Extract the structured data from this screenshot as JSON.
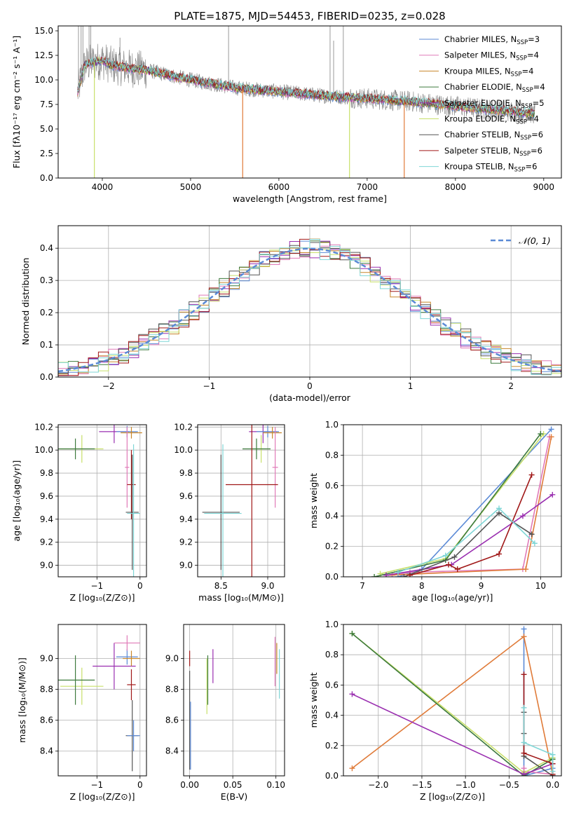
{
  "colors": {
    "chabrier_miles": "#5b8ad6",
    "salpeter_miles": "#e07ab8",
    "kroupa_miles": "#c8862a",
    "chabrier_elodie": "#3d7a3d",
    "salpeter_elodie": "#9a2fb0",
    "kroupa_elodie": "#c8e06a",
    "chabrier_stelib": "#555555",
    "salpeter_stelib": "#a01818",
    "kroupa_stelib": "#7fd6d6",
    "data": "#808080",
    "normal": "#5b8ad6",
    "orange": "#e07b39"
  },
  "chart_data": [
    {
      "id": "spectrum",
      "type": "line",
      "title": "PLATE=1875, MJD=54453, FIBERID=0235, z=0.028",
      "xlabel": "wavelength [Angstrom, rest frame]",
      "ylabel": "Flux [fλ10⁻¹⁷ erg cm⁻² s⁻¹ A⁻¹]",
      "xlim": [
        3500,
        9200
      ],
      "ylim": [
        0,
        15.5
      ],
      "xticks": [
        4000,
        5000,
        6000,
        7000,
        8000,
        9000
      ],
      "yticks": [
        0.0,
        2.5,
        5.0,
        7.5,
        10.0,
        12.5,
        15.0
      ],
      "legend_position": "top-right",
      "legend": [
        {
          "label": "Chabrier MILES, N",
          "sub": "SSP",
          "eq": "=3",
          "color_key": "chabrier_miles"
        },
        {
          "label": "Salpeter MILES, N",
          "sub": "SSP",
          "eq": "=4",
          "color_key": "salpeter_miles"
        },
        {
          "label": "Kroupa MILES, N",
          "sub": "SSP",
          "eq": "=4",
          "color_key": "kroupa_miles"
        },
        {
          "label": "Chabrier ELODIE, N",
          "sub": "SSP",
          "eq": "=4",
          "color_key": "chabrier_elodie"
        },
        {
          "label": "Salpeter ELODIE, N",
          "sub": "SSP",
          "eq": "=5",
          "color_key": "salpeter_elodie"
        },
        {
          "label": "Kroupa ELODIE, N",
          "sub": "SSP",
          "eq": "=4",
          "color_key": "kroupa_elodie"
        },
        {
          "label": "Chabrier STELIB, N",
          "sub": "SSP",
          "eq": "=6",
          "color_key": "chabrier_stelib"
        },
        {
          "label": "Salpeter STELIB, N",
          "sub": "SSP",
          "eq": "=6",
          "color_key": "salpeter_stelib"
        },
        {
          "label": "Kroupa STELIB, N",
          "sub": "SSP",
          "eq": "=6",
          "color_key": "kroupa_stelib"
        }
      ],
      "continuum": {
        "x": [
          3700,
          3800,
          3900,
          4000,
          4100,
          4300,
          4500,
          5000,
          5500,
          6000,
          6500,
          7000,
          7500,
          8000,
          8500,
          8900
        ],
        "y": [
          8.0,
          11.5,
          11.8,
          12.0,
          11.5,
          11.2,
          11.0,
          10.0,
          9.2,
          8.8,
          8.4,
          8.1,
          7.8,
          7.3,
          6.9,
          6.6
        ]
      },
      "data_spikes": [
        {
          "x": 3730,
          "y": 15.5
        },
        {
          "x": 3760,
          "y": 15.5
        },
        {
          "x": 3780,
          "y": 15.5
        },
        {
          "x": 3850,
          "y": 15.5
        },
        {
          "x": 3870,
          "y": 15.5
        },
        {
          "x": 4200,
          "y": 14.3
        },
        {
          "x": 5430,
          "y": 15.5
        },
        {
          "x": 6580,
          "y": 15.5
        },
        {
          "x": 6620,
          "y": 14.0
        },
        {
          "x": 6730,
          "y": 15.5
        }
      ],
      "model_dips": [
        {
          "x": 3910,
          "y": 0.0
        },
        {
          "x": 5590,
          "y": 0.0
        },
        {
          "x": 6800,
          "y": 0.0
        },
        {
          "x": 7420,
          "y": 0.0
        }
      ]
    },
    {
      "id": "residuals",
      "type": "bar",
      "xlabel": "(data-model)/error",
      "ylabel": "Normed distribution",
      "xlim": [
        -2.5,
        2.5
      ],
      "ylim": [
        0,
        0.47
      ],
      "xticks": [
        -2,
        -1,
        0,
        1,
        2
      ],
      "yticks": [
        0.0,
        0.1,
        0.2,
        0.3,
        0.4
      ],
      "legend_position": "top-right",
      "normal_label": "𝒩(0, 1)",
      "bin_width": 0.1,
      "bin_start": -2.5
    },
    {
      "id": "age_vs_Z",
      "type": "scatter",
      "xlabel": "Z [log₁₀(Z/Z⊙)]",
      "ylabel": "age  [log₁₀(age/yr)]",
      "xlim": [
        -1.9,
        0.15
      ],
      "ylim": [
        8.9,
        10.22
      ],
      "xticks": [
        -1,
        0
      ],
      "yticks": [
        9.0,
        9.2,
        9.4,
        9.6,
        9.8,
        10.0,
        10.2
      ],
      "points": [
        {
          "x": -1.35,
          "y": 10.01,
          "dx": 0.5,
          "dy": 0.12,
          "c": "kroupa_elodie"
        },
        {
          "x": -1.5,
          "y": 10.01,
          "dx": 0.45,
          "dy": 0.09,
          "c": "chabrier_elodie"
        },
        {
          "x": -0.6,
          "y": 10.16,
          "dx": 0.35,
          "dy": 0.1,
          "c": "salpeter_elodie"
        },
        {
          "x": -0.3,
          "y": 10.16,
          "dx": 0.25,
          "dy": 0.05,
          "c": "chabrier_miles"
        },
        {
          "x": -0.2,
          "y": 10.15,
          "dx": 0.25,
          "dy": 0.05,
          "c": "kroupa_miles"
        },
        {
          "x": -0.3,
          "y": 9.85,
          "dx": 0.05,
          "dy": 0.35,
          "c": "salpeter_miles"
        },
        {
          "x": -0.2,
          "y": 9.7,
          "dx": 0.1,
          "dy": 0.3,
          "c": "salpeter_stelib"
        },
        {
          "x": -0.18,
          "y": 9.46,
          "dx": 0.15,
          "dy": 0.5,
          "c": "chabrier_stelib"
        },
        {
          "x": -0.15,
          "y": 9.45,
          "dx": 0.15,
          "dy": 0.6,
          "c": "kroupa_stelib"
        }
      ]
    },
    {
      "id": "age_vs_mass",
      "type": "scatter",
      "xlabel": "mass [log₁₀(M/M⊙)]",
      "ylabel": "",
      "xlim": [
        8.25,
        9.18
      ],
      "ylim": [
        8.9,
        10.22
      ],
      "xticks": [
        8.5,
        9.0
      ],
      "yticks": [
        9.0,
        9.2,
        9.4,
        9.6,
        9.8,
        10.0,
        10.2
      ],
      "points": [
        {
          "x": 8.93,
          "y": 10.01,
          "dx": 0.1,
          "dy": 0.12,
          "c": "kroupa_elodie"
        },
        {
          "x": 8.88,
          "y": 10.01,
          "dx": 0.15,
          "dy": 0.09,
          "c": "chabrier_elodie"
        },
        {
          "x": 8.95,
          "y": 10.16,
          "dx": 0.15,
          "dy": 0.1,
          "c": "salpeter_elodie"
        },
        {
          "x": 9.0,
          "y": 10.16,
          "dx": 0.12,
          "dy": 0.05,
          "c": "chabrier_miles"
        },
        {
          "x": 9.05,
          "y": 10.15,
          "dx": 0.1,
          "dy": 0.05,
          "c": "kroupa_miles"
        },
        {
          "x": 9.08,
          "y": 9.85,
          "dx": 0.03,
          "dy": 0.35,
          "c": "salpeter_miles"
        },
        {
          "x": 8.83,
          "y": 9.7,
          "dx": 0.28,
          "dy": 0.8,
          "c": "salpeter_stelib"
        },
        {
          "x": 8.5,
          "y": 9.46,
          "dx": 0.2,
          "dy": 0.5,
          "c": "chabrier_stelib"
        },
        {
          "x": 8.52,
          "y": 9.45,
          "dx": 0.2,
          "dy": 0.6,
          "c": "kroupa_stelib"
        }
      ]
    },
    {
      "id": "weight_vs_age",
      "type": "line",
      "xlabel": "age  [log₁₀(age/yr)]",
      "ylabel": "mass weight",
      "xlim": [
        6.68,
        10.35
      ],
      "ylim": [
        0,
        1.0
      ],
      "xticks": [
        7,
        8,
        9,
        10
      ],
      "yticks": [
        0.0,
        0.2,
        0.4,
        0.6,
        0.8,
        1.0
      ],
      "series": [
        {
          "c": "chabrier_miles",
          "x": [
            7.6,
            8.0,
            10.18
          ],
          "y": [
            0.0,
            0.05,
            0.97
          ]
        },
        {
          "c": "salpeter_miles",
          "x": [
            7.5,
            7.8,
            9.7,
            10.15
          ],
          "y": [
            0.01,
            0.03,
            0.05,
            0.92
          ]
        },
        {
          "c": "orange",
          "x": [
            7.4,
            9.75,
            10.18
          ],
          "y": [
            0.01,
            0.05,
            0.92
          ]
        },
        {
          "c": "kroupa_elodie",
          "x": [
            7.3,
            8.4,
            10.05
          ],
          "y": [
            0.02,
            0.12,
            0.94
          ]
        },
        {
          "c": "chabrier_elodie",
          "x": [
            7.2,
            8.4,
            10.0
          ],
          "y": [
            0.0,
            0.11,
            0.94
          ]
        },
        {
          "c": "salpeter_elodie",
          "x": [
            7.4,
            8.5,
            9.7,
            10.2
          ],
          "y": [
            0.01,
            0.08,
            0.4,
            0.54
          ]
        },
        {
          "c": "chabrier_stelib",
          "x": [
            7.7,
            8.55,
            9.3,
            9.85
          ],
          "y": [
            0.0,
            0.13,
            0.42,
            0.28
          ]
        },
        {
          "c": "salpeter_stelib",
          "x": [
            7.8,
            8.45,
            8.6,
            9.3,
            9.85
          ],
          "y": [
            0.01,
            0.08,
            0.05,
            0.15,
            0.67
          ]
        },
        {
          "c": "kroupa_stelib",
          "x": [
            7.6,
            8.4,
            9.3,
            9.9
          ],
          "y": [
            0.03,
            0.14,
            0.45,
            0.22
          ]
        }
      ]
    },
    {
      "id": "mass_vs_Z",
      "type": "scatter",
      "xlabel": "Z [log₁₀(Z/Z⊙)]",
      "ylabel": "mass [log₁₀(M/M⊙)]",
      "xlim": [
        -1.9,
        0.15
      ],
      "ylim": [
        8.24,
        9.22
      ],
      "xticks": [
        -1,
        0
      ],
      "yticks": [
        8.4,
        8.6,
        8.8,
        9.0
      ],
      "points": [
        {
          "x": -1.35,
          "y": 8.82,
          "dx": 0.5,
          "dy": 0.12,
          "c": "kroupa_elodie"
        },
        {
          "x": -1.5,
          "y": 8.86,
          "dx": 0.45,
          "dy": 0.16,
          "c": "chabrier_elodie"
        },
        {
          "x": -0.6,
          "y": 8.95,
          "dx": 0.5,
          "dy": 0.15,
          "c": "salpeter_elodie"
        },
        {
          "x": -0.3,
          "y": 9.01,
          "dx": 0.25,
          "dy": 0.05,
          "c": "chabrier_miles"
        },
        {
          "x": -0.3,
          "y": 9.1,
          "dx": 0.3,
          "dy": 0.05,
          "c": "salpeter_miles"
        },
        {
          "x": -0.2,
          "y": 9.0,
          "dx": 0.2,
          "dy": 0.05,
          "c": "kroupa_miles"
        },
        {
          "x": -0.2,
          "y": 8.83,
          "dx": 0.1,
          "dy": 0.1,
          "c": "salpeter_stelib"
        },
        {
          "x": -0.18,
          "y": 8.5,
          "dx": 0.15,
          "dy": 0.23,
          "c": "chabrier_stelib"
        },
        {
          "x": -0.15,
          "y": 8.5,
          "dx": 0.15,
          "dy": 0.1,
          "c": "chabrier_miles"
        }
      ]
    },
    {
      "id": "mass_vs_EBV",
      "type": "scatter",
      "xlabel": "E(B-V)",
      "ylabel": "",
      "xlim": [
        -0.007,
        0.11
      ],
      "ylim": [
        8.24,
        9.22
      ],
      "xticks": [
        0.0,
        0.05,
        0.1
      ],
      "yticks": [
        8.4,
        8.6,
        8.8,
        9.0
      ],
      "points": [
        {
          "x": 0.0,
          "y": 8.6,
          "dx": 0.0,
          "dy": 0.32,
          "c": "chabrier_stelib"
        },
        {
          "x": 0.001,
          "y": 8.5,
          "dx": 0.0,
          "dy": 0.22,
          "c": "chabrier_miles"
        },
        {
          "x": 0.0,
          "y": 9.0,
          "dx": 0.0,
          "dy": 0.05,
          "c": "salpeter_stelib"
        },
        {
          "x": 0.02,
          "y": 8.82,
          "dx": 0.0,
          "dy": 0.18,
          "c": "kroupa_elodie"
        },
        {
          "x": 0.021,
          "y": 8.86,
          "dx": 0.0,
          "dy": 0.16,
          "c": "chabrier_elodie"
        },
        {
          "x": 0.027,
          "y": 8.95,
          "dx": 0.0,
          "dy": 0.11,
          "c": "salpeter_elodie"
        },
        {
          "x": 0.099,
          "y": 8.98,
          "dx": 0.0,
          "dy": 0.16,
          "c": "salpeter_miles"
        },
        {
          "x": 0.101,
          "y": 9.0,
          "dx": 0.0,
          "dy": 0.1,
          "c": "kroupa_miles"
        },
        {
          "x": 0.104,
          "y": 8.9,
          "dx": 0.0,
          "dy": 0.16,
          "c": "kroupa_stelib"
        }
      ]
    },
    {
      "id": "weight_vs_Z",
      "type": "line",
      "xlabel": "Z [log₁₀(Z/Z⊙)]",
      "ylabel": "mass weight",
      "xlim": [
        -2.4,
        0.1
      ],
      "ylim": [
        0,
        1.0
      ],
      "xticks": [
        -2.0,
        -1.5,
        -1.0,
        -0.5,
        0.0
      ],
      "yticks": [
        0.0,
        0.2,
        0.4,
        0.6,
        0.8,
        1.0
      ],
      "series": [
        {
          "c": "chabrier_miles",
          "x": [
            -0.33,
            -0.33,
            0.0,
            0.0
          ],
          "y": [
            0.97,
            0.0,
            0.05,
            0.0
          ]
        },
        {
          "c": "salpeter_miles",
          "x": [
            -0.33,
            -0.33,
            0.0
          ],
          "y": [
            0.05,
            0.03,
            0.01
          ]
        },
        {
          "c": "orange",
          "x": [
            -2.3,
            -0.33,
            0.0
          ],
          "y": [
            0.05,
            0.92,
            0.01
          ]
        },
        {
          "c": "kroupa_elodie",
          "x": [
            -2.3,
            -0.33,
            0.0
          ],
          "y": [
            0.94,
            0.02,
            0.12
          ]
        },
        {
          "c": "chabrier_elodie",
          "x": [
            -2.3,
            -0.33,
            0.0
          ],
          "y": [
            0.94,
            0.0,
            0.11
          ]
        },
        {
          "c": "salpeter_elodie",
          "x": [
            -2.3,
            -0.33,
            0.0
          ],
          "y": [
            0.54,
            0.01,
            0.08
          ]
        },
        {
          "c": "chabrier_stelib",
          "x": [
            -0.33,
            -0.33,
            -0.33,
            0.0,
            0.0
          ],
          "y": [
            0.42,
            0.28,
            0.13,
            0.0,
            0.0
          ]
        },
        {
          "c": "salpeter_stelib",
          "x": [
            -0.33,
            -0.33,
            0.0,
            0.0
          ],
          "y": [
            0.67,
            0.15,
            0.08,
            0.01
          ]
        },
        {
          "c": "kroupa_stelib",
          "x": [
            -0.33,
            -0.33,
            0.0,
            0.0
          ],
          "y": [
            0.45,
            0.22,
            0.14,
            0.03
          ]
        }
      ]
    }
  ]
}
